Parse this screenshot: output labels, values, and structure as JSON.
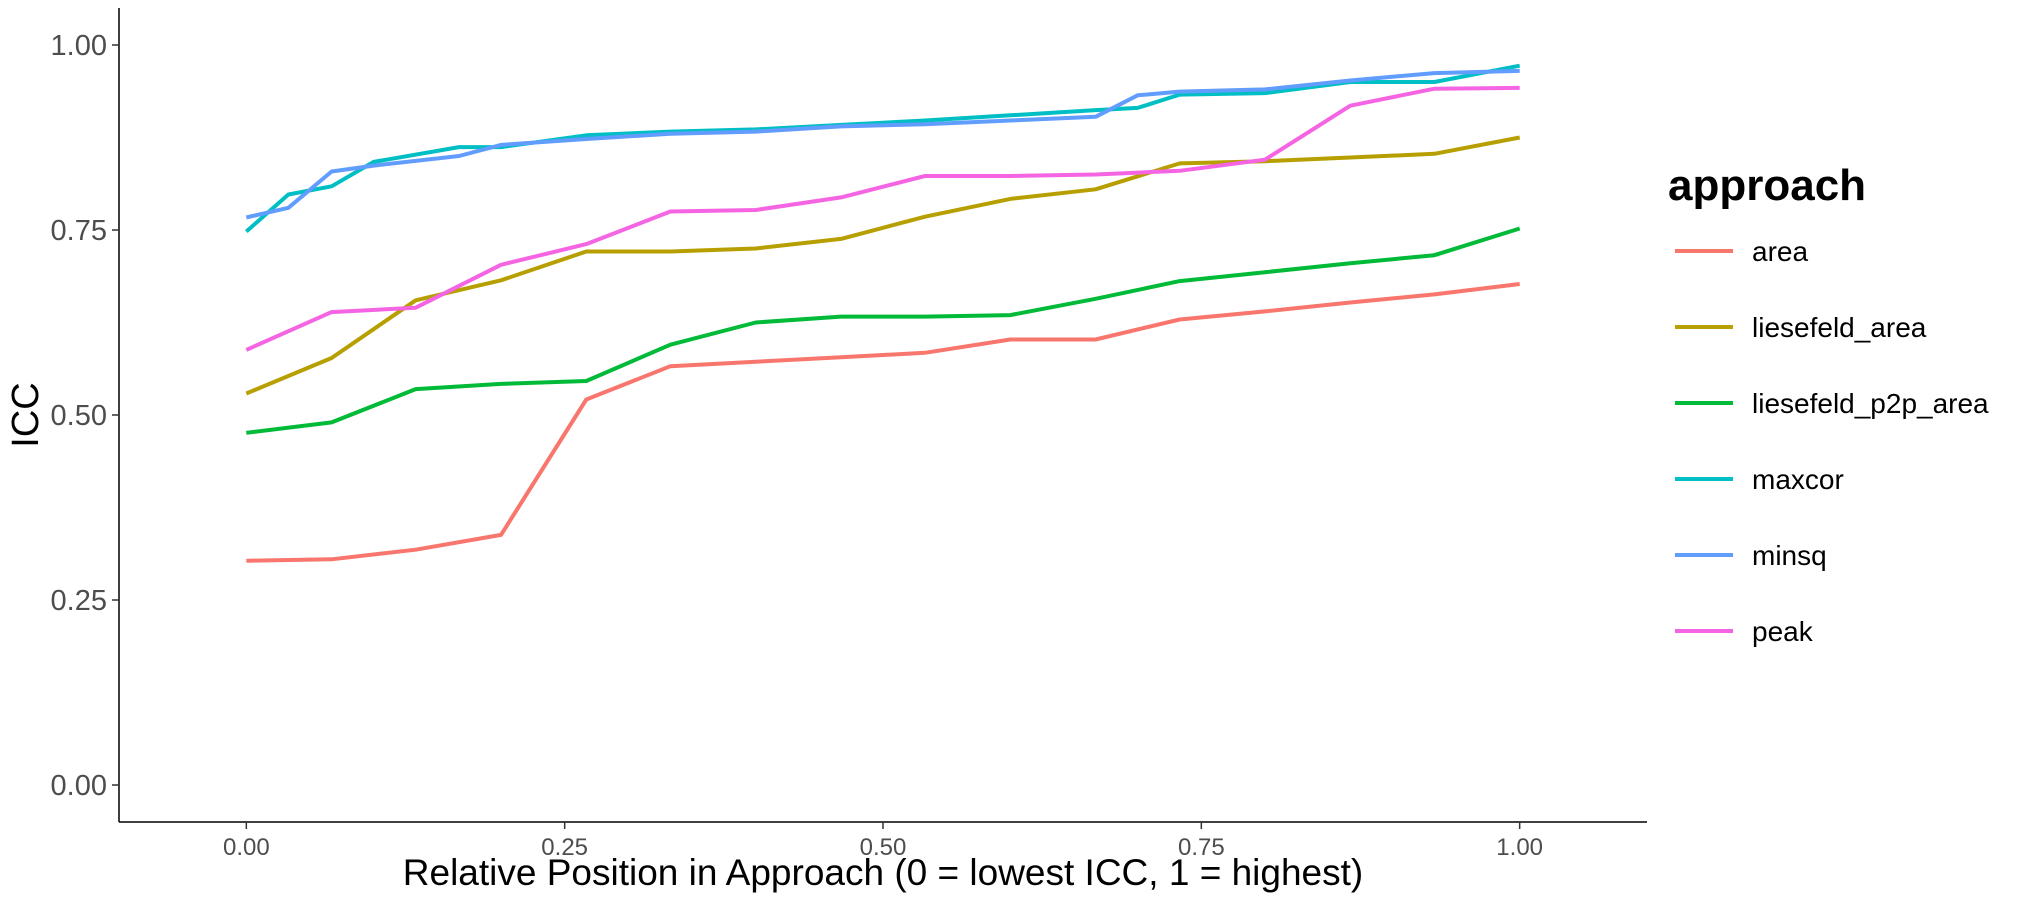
{
  "chart_data": {
    "type": "line",
    "xlabel": "Relative Position in Approach (0 = lowest ICC, 1 = highest)",
    "ylabel": "ICC",
    "xlim": [
      -0.1,
      1.1
    ],
    "ylim": [
      -0.05,
      1.05
    ],
    "x_ticks": [
      "0.00",
      "0.25",
      "0.50",
      "0.75",
      "1.00"
    ],
    "y_ticks": [
      "0.00",
      "0.25",
      "0.50",
      "0.75",
      "1.00"
    ],
    "grid": false,
    "legend": {
      "title": "approach",
      "position": "right"
    },
    "series": [
      {
        "name": "area",
        "color": "#F8766D",
        "x": [
          0.0,
          0.067,
          0.133,
          0.2,
          0.267,
          0.333,
          0.4,
          0.467,
          0.533,
          0.6,
          0.667,
          0.733,
          0.8,
          0.867,
          0.933,
          1.0
        ],
        "y": [
          0.303,
          0.305,
          0.318,
          0.338,
          0.521,
          0.566,
          0.572,
          0.578,
          0.584,
          0.602,
          0.602,
          0.629,
          0.64,
          0.652,
          0.663,
          0.677
        ]
      },
      {
        "name": "liesefeld_area",
        "color": "#B79F00",
        "x": [
          0.0,
          0.067,
          0.133,
          0.2,
          0.267,
          0.333,
          0.4,
          0.467,
          0.533,
          0.6,
          0.667,
          0.733,
          0.8,
          0.867,
          0.933,
          1.0
        ],
        "y": [
          0.529,
          0.577,
          0.655,
          0.682,
          0.721,
          0.721,
          0.725,
          0.738,
          0.768,
          0.792,
          0.805,
          0.84,
          0.843,
          0.848,
          0.853,
          0.875
        ]
      },
      {
        "name": "liesefeld_p2p_area",
        "color": "#00BA38",
        "x": [
          0.0,
          0.067,
          0.133,
          0.2,
          0.267,
          0.333,
          0.4,
          0.467,
          0.533,
          0.6,
          0.667,
          0.733,
          0.8,
          0.867,
          0.933,
          1.0
        ],
        "y": [
          0.476,
          0.49,
          0.535,
          0.542,
          0.546,
          0.595,
          0.625,
          0.633,
          0.633,
          0.635,
          0.657,
          0.681,
          0.693,
          0.705,
          0.716,
          0.752
        ]
      },
      {
        "name": "maxcor",
        "color": "#00BFC4",
        "x": [
          0.0,
          0.033,
          0.067,
          0.1,
          0.167,
          0.2,
          0.267,
          0.333,
          0.4,
          0.467,
          0.533,
          0.6,
          0.667,
          0.7,
          0.733,
          0.8,
          0.867,
          0.933,
          1.0
        ],
        "y": [
          0.748,
          0.798,
          0.809,
          0.842,
          0.862,
          0.862,
          0.878,
          0.883,
          0.886,
          0.892,
          0.898,
          0.905,
          0.912,
          0.915,
          0.933,
          0.935,
          0.95,
          0.95,
          0.972
        ]
      },
      {
        "name": "minsq",
        "color": "#619CFF",
        "x": [
          0.0,
          0.033,
          0.067,
          0.1,
          0.167,
          0.2,
          0.267,
          0.333,
          0.4,
          0.467,
          0.533,
          0.6,
          0.667,
          0.7,
          0.733,
          0.8,
          0.867,
          0.933,
          1.0
        ],
        "y": [
          0.767,
          0.78,
          0.829,
          0.837,
          0.85,
          0.865,
          0.873,
          0.88,
          0.883,
          0.89,
          0.893,
          0.898,
          0.903,
          0.932,
          0.937,
          0.94,
          0.952,
          0.962,
          0.965
        ]
      },
      {
        "name": "peak",
        "color": "#F564E3",
        "x": [
          0.0,
          0.067,
          0.133,
          0.2,
          0.267,
          0.333,
          0.4,
          0.467,
          0.533,
          0.6,
          0.667,
          0.733,
          0.8,
          0.867,
          0.933,
          1.0
        ],
        "y": [
          0.588,
          0.639,
          0.645,
          0.703,
          0.731,
          0.775,
          0.777,
          0.794,
          0.823,
          0.823,
          0.825,
          0.83,
          0.845,
          0.918,
          0.941,
          0.942
        ]
      }
    ]
  }
}
